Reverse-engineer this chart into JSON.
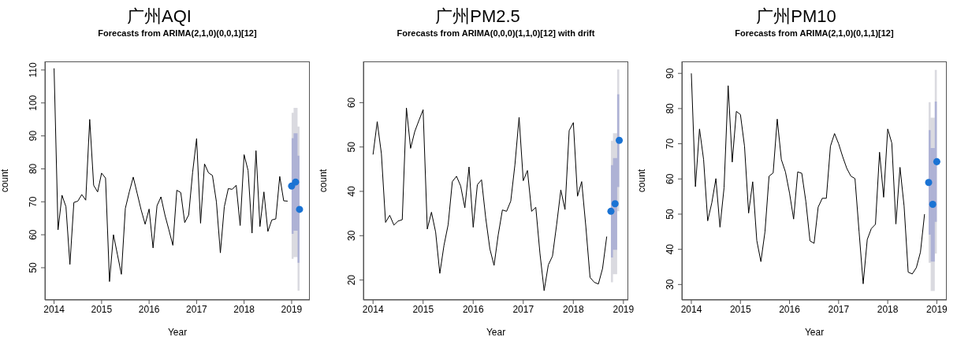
{
  "chart_data": [
    {
      "type": "line",
      "title": "广州AQI",
      "subtitle": "Forecasts from ARIMA(2,1,0)(0,0,1)[12]",
      "xlabel": "Year",
      "ylabel": "count",
      "x": [
        "2014-01",
        "2014-02",
        "2014-03",
        "2014-04",
        "2014-05",
        "2014-06",
        "2014-07",
        "2014-08",
        "2014-09",
        "2014-10",
        "2014-11",
        "2014-12",
        "2015-01",
        "2015-02",
        "2015-03",
        "2015-04",
        "2015-05",
        "2015-06",
        "2015-07",
        "2015-08",
        "2015-09",
        "2015-10",
        "2015-11",
        "2015-12",
        "2016-01",
        "2016-02",
        "2016-03",
        "2016-04",
        "2016-05",
        "2016-06",
        "2016-07",
        "2016-08",
        "2016-09",
        "2016-10",
        "2016-11",
        "2016-12",
        "2017-01",
        "2017-02",
        "2017-03",
        "2017-04",
        "2017-05",
        "2017-06",
        "2017-07",
        "2017-08",
        "2017-09",
        "2017-10",
        "2017-11",
        "2017-12",
        "2018-01",
        "2018-02",
        "2018-03",
        "2018-04",
        "2018-05",
        "2018-06",
        "2018-07",
        "2018-08",
        "2018-09",
        "2018-10",
        "2018-11",
        "2018-12"
      ],
      "xlim": [
        "2013-10-22",
        "2019-05-19"
      ],
      "xticks": [
        "2014",
        "2015",
        "2016",
        "2017",
        "2018",
        "2019"
      ],
      "ylim": [
        40.2,
        112.6
      ],
      "yticks": [
        50,
        60,
        70,
        80,
        90,
        100,
        110
      ],
      "series": [
        {
          "type": "area",
          "color": "#dadae0",
          "x": [
            "2019-01",
            "2019-02",
            "2019-03"
          ],
          "values": [
            null,
            null,
            null
          ],
          "lower": [
            52.7,
            53.2,
            43
          ],
          "upper": [
            97,
            98.5,
            92.8
          ]
        },
        {
          "type": "area",
          "color": "#aeb2d5",
          "x": [
            "2019-01",
            "2019-02",
            "2019-03"
          ],
          "values": [
            null,
            null,
            null
          ],
          "lower": [
            60.3,
            61.2,
            51.5
          ],
          "upper": [
            89.3,
            90.8,
            84
          ]
        },
        {
          "color": "#000000",
          "values": [
            110.5,
            61.5,
            72,
            68.5,
            51,
            69.8,
            70.2,
            72.2,
            70.5,
            95,
            75,
            73,
            78.7,
            77.2,
            45.8,
            60,
            54,
            48,
            68,
            73,
            77.5,
            72.5,
            67.5,
            63.2,
            67.8,
            56,
            68.8,
            71.5,
            66,
            61.5,
            56.8,
            73.5,
            72.8,
            63.7,
            66,
            79,
            89.2,
            63.5,
            81.5,
            78.8,
            78,
            70,
            54.5,
            68.5,
            74,
            73.8,
            75,
            62.8,
            84.3,
            79.5,
            60.5,
            85.5,
            62.5,
            73,
            61,
            64.5,
            64.8,
            77.7,
            70.3,
            70.2
          ]
        },
        {
          "type": "scatter",
          "color": "#1a73d4",
          "marker": "circle",
          "x": [
            "2019-01",
            "2019-02",
            "2019-03"
          ],
          "values": [
            74.8,
            76,
            67.7
          ]
        }
      ]
    },
    {
      "type": "line",
      "title": "广州PM2.5",
      "subtitle": "Forecasts from ARIMA(0,0,0)(1,1,0)[12] with drift",
      "xlabel": "Year",
      "ylabel": "count",
      "x": [
        "2014-01",
        "2014-02",
        "2014-03",
        "2014-04",
        "2014-05",
        "2014-06",
        "2014-07",
        "2014-08",
        "2014-09",
        "2014-10",
        "2014-11",
        "2014-12",
        "2015-01",
        "2015-02",
        "2015-03",
        "2015-04",
        "2015-05",
        "2015-06",
        "2015-07",
        "2015-08",
        "2015-09",
        "2015-10",
        "2015-11",
        "2015-12",
        "2016-01",
        "2016-02",
        "2016-03",
        "2016-04",
        "2016-05",
        "2016-06",
        "2016-07",
        "2016-08",
        "2016-09",
        "2016-10",
        "2016-11",
        "2016-12",
        "2017-01",
        "2017-02",
        "2017-03",
        "2017-04",
        "2017-05",
        "2017-06",
        "2017-07",
        "2017-08",
        "2017-09",
        "2017-10",
        "2017-11",
        "2017-12",
        "2018-01",
        "2018-02",
        "2018-03",
        "2018-04",
        "2018-05",
        "2018-06",
        "2018-07",
        "2018-08",
        "2018-09"
      ],
      "xlim": [
        "2013-10-22",
        "2019-02-06"
      ],
      "xticks": [
        "2014",
        "2015",
        "2016",
        "2017",
        "2018",
        "2019"
      ],
      "ylim": [
        15.5,
        69.3
      ],
      "yticks": [
        20,
        30,
        40,
        50,
        60
      ],
      "series": [
        {
          "type": "area",
          "color": "#dadae0",
          "x": [
            "2018-10",
            "2018-11",
            "2018-12"
          ],
          "values": [
            null,
            null,
            null
          ],
          "lower": [
            19.5,
            21.3,
            35.5
          ],
          "upper": [
            51.4,
            53.1,
            67.5
          ]
        },
        {
          "type": "area",
          "color": "#aeb2d5",
          "x": [
            "2018-10",
            "2018-11",
            "2018-12"
          ],
          "values": [
            null,
            null,
            null
          ],
          "lower": [
            25.1,
            26.8,
            41
          ],
          "upper": [
            45.9,
            47.5,
            61.9
          ]
        },
        {
          "color": "#000000",
          "values": [
            48.3,
            55.7,
            48.5,
            33,
            34.6,
            32.4,
            33.3,
            33.6,
            58.8,
            49.7,
            53.5,
            56,
            58.4,
            31.5,
            35.3,
            30.8,
            21.5,
            27.8,
            32.5,
            42.2,
            43.4,
            41.2,
            36.3,
            45.5,
            31.9,
            41.5,
            42.6,
            34,
            27,
            23.3,
            30.2,
            35.8,
            35.5,
            37.8,
            46,
            56.7,
            42.4,
            44.7,
            35.5,
            36.4,
            26,
            17.6,
            23.4,
            25.4,
            32.5,
            40.3,
            35.9,
            53.7,
            55.5,
            38.9,
            42.2,
            32,
            20.6,
            19.5,
            19.1,
            22.6,
            29.8
          ]
        },
        {
          "type": "scatter",
          "color": "#1a73d4",
          "marker": "circle",
          "x": [
            "2018-10",
            "2018-11",
            "2018-12"
          ],
          "values": [
            35.5,
            37.2,
            51.5
          ]
        }
      ]
    },
    {
      "type": "line",
      "title": "广州PM10",
      "subtitle": "Forecasts from ARIMA(2,1,0)(0,1,1)[12]",
      "xlabel": "Year",
      "ylabel": "count",
      "x": [
        "2014-01",
        "2014-02",
        "2014-03",
        "2014-04",
        "2014-05",
        "2014-06",
        "2014-07",
        "2014-08",
        "2014-09",
        "2014-10",
        "2014-11",
        "2014-12",
        "2015-01",
        "2015-02",
        "2015-03",
        "2015-04",
        "2015-05",
        "2015-06",
        "2015-07",
        "2015-08",
        "2015-09",
        "2015-10",
        "2015-11",
        "2015-12",
        "2016-01",
        "2016-02",
        "2016-03",
        "2016-04",
        "2016-05",
        "2016-06",
        "2016-07",
        "2016-08",
        "2016-09",
        "2016-10",
        "2016-11",
        "2016-12",
        "2017-01",
        "2017-02",
        "2017-03",
        "2017-04",
        "2017-05",
        "2017-06",
        "2017-07",
        "2017-08",
        "2017-09",
        "2017-10",
        "2017-11",
        "2017-12",
        "2018-01",
        "2018-02",
        "2018-03",
        "2018-04",
        "2018-05",
        "2018-06",
        "2018-07",
        "2018-08",
        "2018-09",
        "2018-10"
      ],
      "xlim": [
        "2013-10-22",
        "2019-03-14"
      ],
      "xticks": [
        "2014",
        "2015",
        "2016",
        "2017",
        "2018",
        "2019"
      ],
      "ylim": [
        25.6,
        93.4
      ],
      "yticks": [
        30,
        40,
        50,
        60,
        70,
        80,
        90
      ],
      "series": [
        {
          "type": "area",
          "color": "#dadae0",
          "x": [
            "2018-11",
            "2018-12",
            "2019-01"
          ],
          "values": [
            null,
            null,
            null
          ],
          "lower": [
            36.2,
            28.2,
            38.8
          ],
          "upper": [
            81.8,
            77.4,
            91
          ]
        },
        {
          "type": "area",
          "color": "#aeb2d5",
          "x": [
            "2018-11",
            "2018-12",
            "2019-01"
          ],
          "values": [
            null,
            null,
            null
          ],
          "lower": [
            44.2,
            36.5,
            47.8
          ],
          "upper": [
            73.9,
            68.8,
            82
          ]
        },
        {
          "color": "#000000",
          "values": [
            90,
            57.8,
            74.2,
            65.5,
            48.1,
            53.2,
            60.1,
            46.3,
            57.5,
            86.5,
            64.8,
            79.2,
            78.3,
            69.3,
            50.3,
            59.2,
            42.5,
            36.5,
            45,
            60.8,
            61.7,
            77,
            65.5,
            62,
            56,
            48.6,
            62,
            61.6,
            53.5,
            42.4,
            41.7,
            52,
            54.5,
            54.5,
            69.3,
            72.9,
            70,
            66.3,
            63,
            60.8,
            60.1,
            45,
            30.2,
            42.8,
            45.9,
            47.1,
            67.6,
            54.8,
            74.2,
            70.2,
            47.2,
            63.3,
            52.3,
            33.5,
            33,
            34.8,
            39.2,
            50
          ]
        },
        {
          "type": "scatter",
          "color": "#1a73d4",
          "marker": "circle",
          "x": [
            "2018-11",
            "2018-12",
            "2019-01"
          ],
          "values": [
            59,
            52.8,
            64.9
          ]
        }
      ]
    }
  ]
}
